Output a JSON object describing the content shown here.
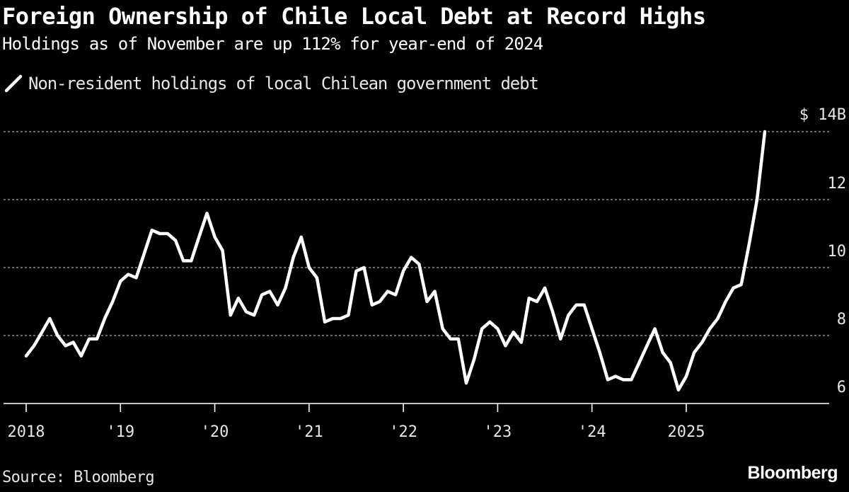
{
  "header": {
    "title": "Foreign Ownership of Chile Local Debt at Record Highs",
    "subtitle": "Holdings as of November are up 112% for year-end of 2024"
  },
  "footer": {
    "source": "Source: Bloomberg",
    "brand": "Bloomberg"
  },
  "colors": {
    "background": "#000000",
    "line": "#ffffff",
    "grid": "#8c8c8c",
    "text": "#e6e6e6"
  },
  "chart_data": {
    "type": "line",
    "title": "Foreign Ownership of Chile Local Debt at Record Highs",
    "subtitle": "Holdings as of November are up 112% for year-end of 2024",
    "xlabel": "",
    "ylabel": "",
    "y_unit_label": "$ 14B",
    "ylim": [
      6,
      14
    ],
    "yticks": [
      6,
      8,
      10,
      12,
      14
    ],
    "ytick_labels": [
      "6",
      "8",
      "10",
      "12",
      "$ 14B"
    ],
    "x_ticks": [
      2018,
      2019,
      2020,
      2021,
      2022,
      2023,
      2024,
      2025
    ],
    "x_tick_labels": [
      "2018",
      "'19",
      "'20",
      "'21",
      "'22",
      "'23",
      "'24",
      "2025"
    ],
    "grid": "horizontal dashed",
    "legend_position": "top-left",
    "series": [
      {
        "name": "Non-resident holdings of local Chilean government debt",
        "x": [
          2018.0,
          2018.083,
          2018.167,
          2018.25,
          2018.333,
          2018.417,
          2018.5,
          2018.583,
          2018.667,
          2018.75,
          2018.833,
          2018.917,
          2019.0,
          2019.083,
          2019.167,
          2019.25,
          2019.333,
          2019.417,
          2019.5,
          2019.583,
          2019.667,
          2019.75,
          2019.833,
          2019.917,
          2020.0,
          2020.083,
          2020.167,
          2020.25,
          2020.333,
          2020.417,
          2020.5,
          2020.583,
          2020.667,
          2020.75,
          2020.833,
          2020.917,
          2021.0,
          2021.083,
          2021.167,
          2021.25,
          2021.333,
          2021.417,
          2021.5,
          2021.583,
          2021.667,
          2021.75,
          2021.833,
          2021.917,
          2022.0,
          2022.083,
          2022.167,
          2022.25,
          2022.333,
          2022.417,
          2022.5,
          2022.583,
          2022.667,
          2022.75,
          2022.833,
          2022.917,
          2023.0,
          2023.083,
          2023.167,
          2023.25,
          2023.333,
          2023.417,
          2023.5,
          2023.583,
          2023.667,
          2023.75,
          2023.833,
          2023.917,
          2024.0,
          2024.083,
          2024.167,
          2024.25,
          2024.333,
          2024.417,
          2024.5,
          2024.583,
          2024.667,
          2024.75,
          2024.833,
          2024.917,
          2025.0,
          2025.083,
          2025.167,
          2025.25,
          2025.333,
          2025.417,
          2025.5,
          2025.583,
          2025.667,
          2025.75,
          2025.833
        ],
        "values": [
          7.4,
          7.7,
          8.1,
          8.5,
          8.0,
          7.7,
          7.8,
          7.4,
          7.9,
          7.9,
          8.5,
          9.0,
          9.6,
          9.8,
          9.7,
          10.4,
          11.1,
          11.0,
          11.0,
          10.8,
          10.2,
          10.2,
          10.9,
          11.6,
          10.9,
          10.5,
          8.6,
          9.1,
          8.7,
          8.6,
          9.2,
          9.3,
          8.9,
          9.4,
          10.3,
          10.9,
          10.0,
          9.7,
          8.4,
          8.5,
          8.5,
          8.6,
          9.9,
          10.0,
          8.9,
          9.0,
          9.3,
          9.2,
          9.9,
          10.3,
          10.1,
          9.0,
          9.3,
          8.2,
          7.9,
          7.9,
          6.6,
          7.3,
          8.2,
          8.4,
          8.2,
          7.7,
          8.1,
          7.8,
          9.1,
          9.0,
          9.4,
          8.7,
          7.9,
          8.6,
          8.9,
          8.9,
          8.2,
          7.5,
          6.7,
          6.8,
          6.7,
          6.7,
          7.2,
          7.7,
          8.2,
          7.5,
          7.2,
          6.4,
          6.8,
          7.5,
          7.8,
          8.2,
          8.5,
          9.0,
          9.4,
          9.5,
          10.7,
          12.0,
          14.0
        ]
      }
    ]
  }
}
